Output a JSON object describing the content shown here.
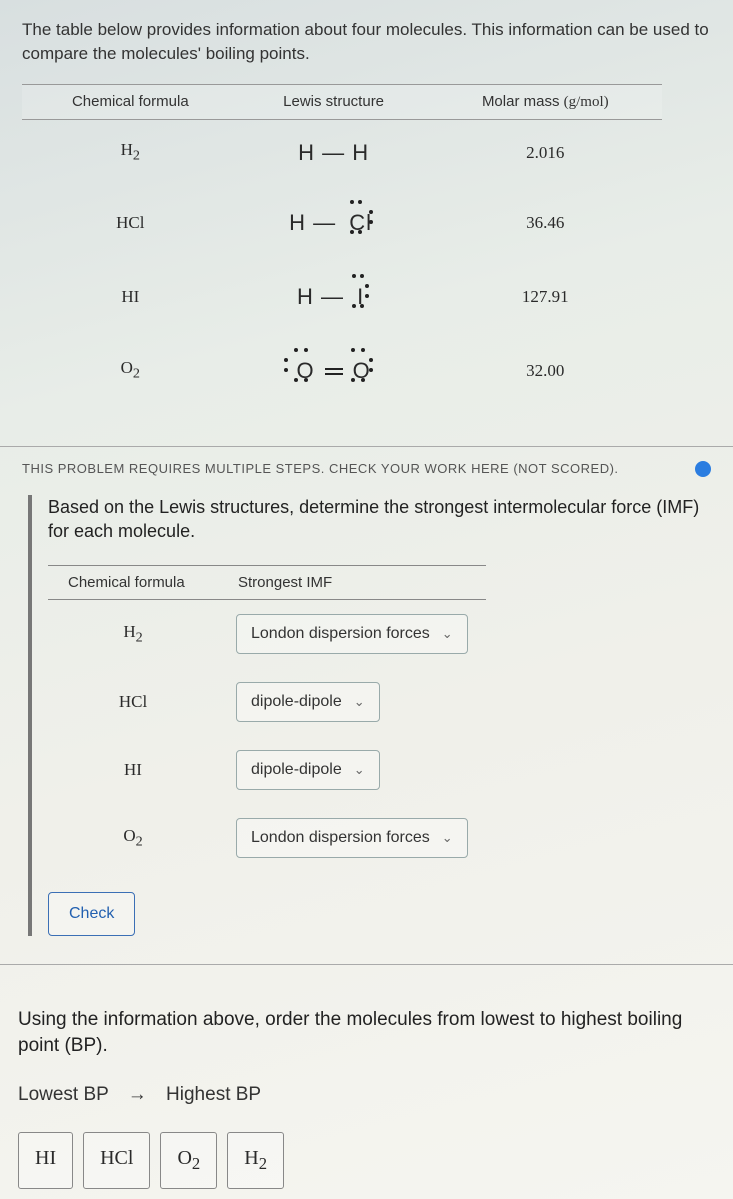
{
  "intro": "The table below provides information about four molecules. This information can be used to compare the molecules' boiling points.",
  "table1": {
    "headers": {
      "formula": "Chemical formula",
      "lewis": "Lewis structure",
      "mass": "Molar mass"
    },
    "mass_unit": "(g/mol)",
    "rows": [
      {
        "formula_html": "H<sub>2</sub>",
        "mass": "2.016"
      },
      {
        "formula_html": "HCl",
        "mass": "36.46"
      },
      {
        "formula_html": "HI",
        "mass": "127.91"
      },
      {
        "formula_html": "O<sub>2</sub>",
        "mass": "32.00"
      }
    ]
  },
  "steps_note": "THIS PROBLEM REQUIRES MULTIPLE STEPS. CHECK YOUR WORK HERE (NOT SCORED).",
  "question1": "Based on the Lewis structures, determine the strongest intermolecular force (IMF) for each molecule.",
  "imf_table": {
    "headers": {
      "formula": "Chemical formula",
      "imf": "Strongest IMF"
    },
    "rows": [
      {
        "formula_html": "H<sub>2</sub>",
        "imf": "London dispersion forces"
      },
      {
        "formula_html": "HCl",
        "imf": "dipole-dipole"
      },
      {
        "formula_html": "HI",
        "imf": "dipole-dipole"
      },
      {
        "formula_html": "O<sub>2</sub>",
        "imf": "London dispersion forces"
      }
    ]
  },
  "check_label": "Check",
  "question2": "Using the information above, order the molecules from lowest to highest boiling point (BP).",
  "bp_low": "Lowest BP",
  "bp_high": "Highest BP",
  "tiles": [
    "HI",
    "HCl",
    "O<sub>2</sub>",
    "H<sub>2</sub>"
  ],
  "colors": {
    "accent_blue": "#2b7de0",
    "border_blue": "#3b6fb5",
    "text_blue": "#2260b0"
  }
}
